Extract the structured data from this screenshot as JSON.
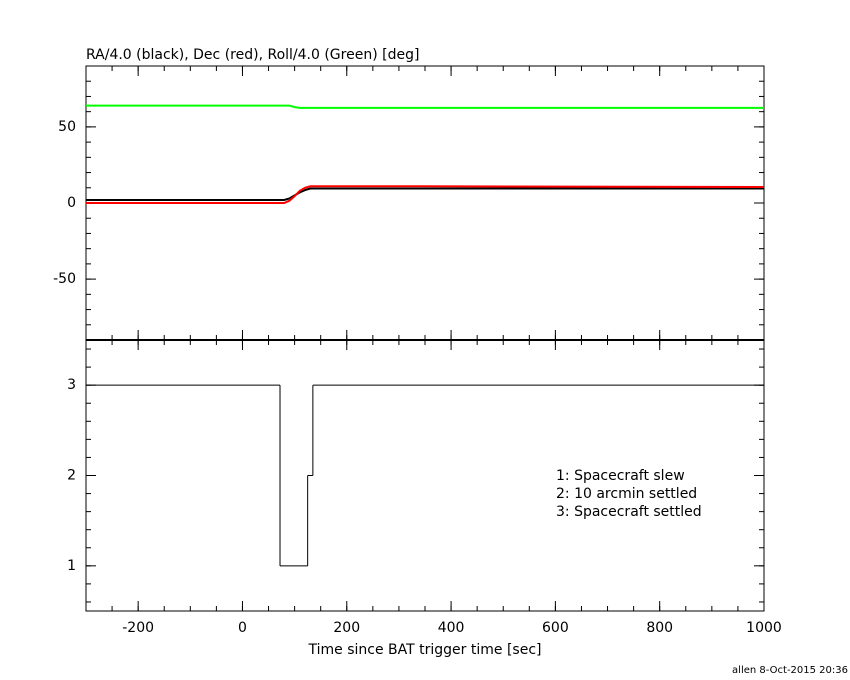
{
  "chart_data": [
    {
      "type": "line",
      "title": "RA/4.0 (black), Dec (red), Roll/4.0 (Green) [deg]",
      "x": [
        -300,
        60,
        80,
        90,
        100,
        110,
        120,
        130,
        200,
        340,
        1000
      ],
      "series": [
        {
          "color": "#000000",
          "values": [
            2,
            2,
            2,
            3,
            5,
            7,
            8.5,
            9.5,
            9.5,
            9.5,
            9.5
          ]
        },
        {
          "color": "#ff0000",
          "values": [
            0,
            0,
            0,
            1.5,
            4.5,
            8,
            10,
            11,
            11,
            11,
            10.5
          ]
        },
        {
          "color": "#00ff00",
          "values": [
            64,
            64,
            64,
            64,
            63,
            62.5,
            62.5,
            62.5,
            62.5,
            62.5,
            62.5
          ]
        }
      ],
      "xlim": [
        -300,
        1000
      ],
      "ylim": [
        -90,
        90
      ],
      "yticks": [
        -50,
        0,
        50
      ]
    },
    {
      "type": "step",
      "x": [
        -300,
        72,
        125,
        135,
        1000
      ],
      "values": [
        3,
        1,
        2,
        3,
        3
      ],
      "xlim": [
        -300,
        1000
      ],
      "xticks": [
        -200,
        0,
        200,
        400,
        600,
        800,
        1000
      ],
      "ylim": [
        0.5,
        3.5
      ],
      "yticks": [
        1,
        2,
        3
      ],
      "xlabel": "Time since BAT trigger time [sec]",
      "annotations": [
        "1: Spacecraft slew",
        "2: 10 arcmin settled",
        "3: Spacecraft settled"
      ],
      "footnote": "allen  8-Oct-2015 20:36"
    }
  ]
}
